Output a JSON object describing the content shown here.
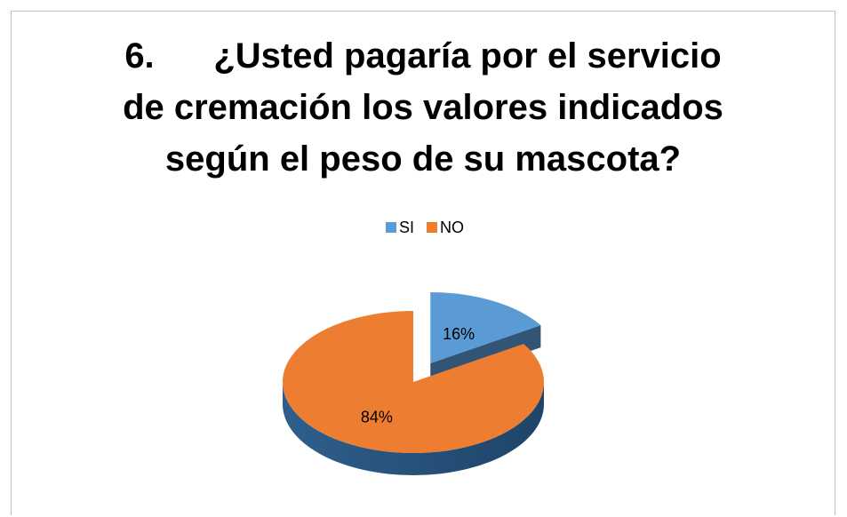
{
  "chart_data": {
    "type": "pie",
    "title": "6.      ¿Usted pagaría por el servicio de cremación los valores indicados según el peso de su mascota?",
    "categories": [
      "SI",
      "NO"
    ],
    "values": [
      16,
      84
    ],
    "value_labels": [
      "16%",
      "84%"
    ],
    "colors": [
      "#5b9bd5",
      "#ed7d31"
    ],
    "legend": "top"
  }
}
